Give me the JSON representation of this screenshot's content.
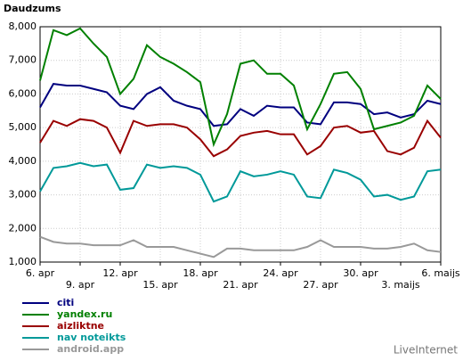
{
  "chart_data": {
    "type": "line",
    "title": "Daudzums",
    "watermark": "LiveInternet",
    "categories": [
      "6. apr",
      null,
      null,
      "9. apr",
      null,
      null,
      "12. apr",
      null,
      null,
      "15. apr",
      null,
      null,
      "18. apr",
      null,
      null,
      "21. apr",
      null,
      null,
      "24. apr",
      null,
      null,
      "27. apr",
      null,
      null,
      "30. apr",
      null,
      null,
      "3. maijs",
      null,
      null,
      "6. maijs"
    ],
    "series": [
      {
        "name": "citi",
        "color": "#00007f",
        "values": [
          5600,
          6300,
          6250,
          6250,
          6150,
          6050,
          5650,
          5550,
          6000,
          6200,
          5800,
          5650,
          5550,
          5050,
          5100,
          5550,
          5350,
          5650,
          5600,
          5600,
          5150,
          5100,
          5750,
          5750,
          5700,
          5400,
          5450,
          5300,
          5400,
          5800,
          5700
        ]
      },
      {
        "name": "yandex.ru",
        "color": "#008000",
        "values": [
          6400,
          7900,
          7750,
          7950,
          7500,
          7100,
          6000,
          6450,
          7450,
          7100,
          6900,
          6650,
          6350,
          4500,
          5400,
          6900,
          7000,
          6600,
          6600,
          6250,
          4950,
          5700,
          6600,
          6650,
          6150,
          4950,
          5050,
          5150,
          5350,
          6250,
          5850
        ]
      },
      {
        "name": "aizliktne",
        "color": "#990000",
        "values": [
          4550,
          5200,
          5050,
          5250,
          5200,
          5000,
          4250,
          5200,
          5050,
          5100,
          5100,
          5000,
          4650,
          4150,
          4350,
          4750,
          4850,
          4900,
          4800,
          4800,
          4200,
          4450,
          5000,
          5050,
          4850,
          4900,
          4300,
          4200,
          4400,
          5200,
          4700
        ]
      },
      {
        "name": "nav noteikts",
        "color": "#009999",
        "values": [
          3100,
          3800,
          3850,
          3950,
          3850,
          3900,
          3150,
          3200,
          3900,
          3800,
          3850,
          3800,
          3600,
          2800,
          2950,
          3700,
          3550,
          3600,
          3700,
          3600,
          2950,
          2900,
          3750,
          3650,
          3450,
          2950,
          3000,
          2850,
          2950,
          3700,
          3750
        ]
      },
      {
        "name": "android.app",
        "color": "#999999",
        "values": [
          1750,
          1600,
          1550,
          1550,
          1500,
          1500,
          1500,
          1650,
          1450,
          1450,
          1450,
          1350,
          1250,
          1150,
          1400,
          1400,
          1350,
          1350,
          1350,
          1350,
          1450,
          1650,
          1450,
          1450,
          1450,
          1400,
          1400,
          1450,
          1550,
          1350,
          1300
        ]
      }
    ],
    "ylim": [
      1000,
      8000
    ],
    "yticks": [
      {
        "value": 1000,
        "label": "1,000"
      },
      {
        "value": 2000,
        "label": "2,000"
      },
      {
        "value": 3000,
        "label": "3,000"
      },
      {
        "value": 4000,
        "label": "4,000"
      },
      {
        "value": 5000,
        "label": "5,000"
      },
      {
        "value": 6000,
        "label": "6,000"
      },
      {
        "value": 7000,
        "label": "7,000"
      },
      {
        "value": 8000,
        "label": "8,000"
      }
    ],
    "grid": true
  }
}
